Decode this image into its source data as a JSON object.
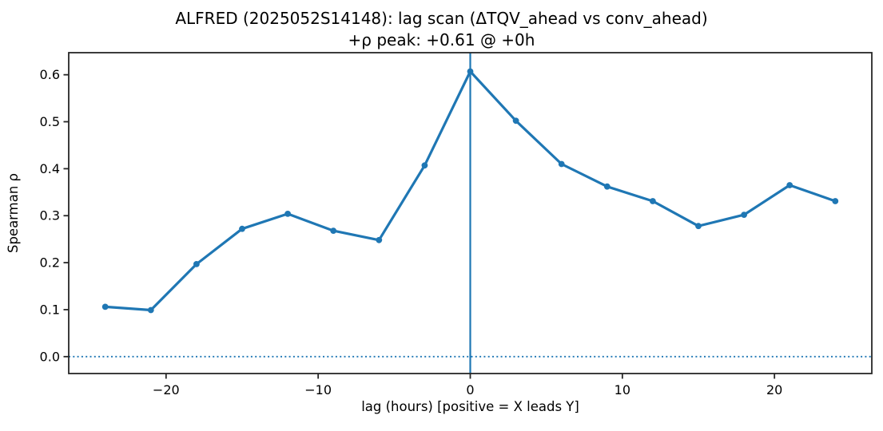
{
  "chart_data": {
    "type": "line",
    "title": "ALFRED (2025052S14148): lag scan (ΔTQV_ahead vs conv_ahead)",
    "subtitle": "+ρ peak: +0.61 @ +0h",
    "xlabel": "lag (hours) [positive = X leads Y]",
    "ylabel": "Spearman ρ",
    "x": [
      -24,
      -21,
      -18,
      -15,
      -12,
      -9,
      -6,
      -3,
      0,
      3,
      6,
      9,
      12,
      15,
      18,
      21,
      24
    ],
    "y": [
      0.106,
      0.099,
      0.197,
      0.272,
      0.304,
      0.268,
      0.248,
      0.407,
      0.607,
      0.502,
      0.41,
      0.362,
      0.331,
      0.278,
      0.302,
      0.365,
      0.331
    ],
    "xlim": [
      -26.4,
      26.4
    ],
    "ylim": [
      -0.036,
      0.647
    ],
    "x_ticks": [
      {
        "v": -20,
        "label": "−20"
      },
      {
        "v": -10,
        "label": "−10"
      },
      {
        "v": 0,
        "label": "0"
      },
      {
        "v": 10,
        "label": "10"
      },
      {
        "v": 20,
        "label": "20"
      }
    ],
    "y_ticks": [
      {
        "v": 0.0,
        "label": "0.0"
      },
      {
        "v": 0.1,
        "label": "0.1"
      },
      {
        "v": 0.2,
        "label": "0.2"
      },
      {
        "v": 0.3,
        "label": "0.3"
      },
      {
        "v": 0.4,
        "label": "0.4"
      },
      {
        "v": 0.5,
        "label": "0.5"
      },
      {
        "v": 0.6,
        "label": "0.6"
      }
    ],
    "vline_x": 0,
    "zero_line_y": 0,
    "peak": {
      "rho": "+0.61",
      "lag": "+0h"
    },
    "line_color": "#1f77b4",
    "axis_color": "#262626",
    "grid": false,
    "legend_position": "none"
  }
}
